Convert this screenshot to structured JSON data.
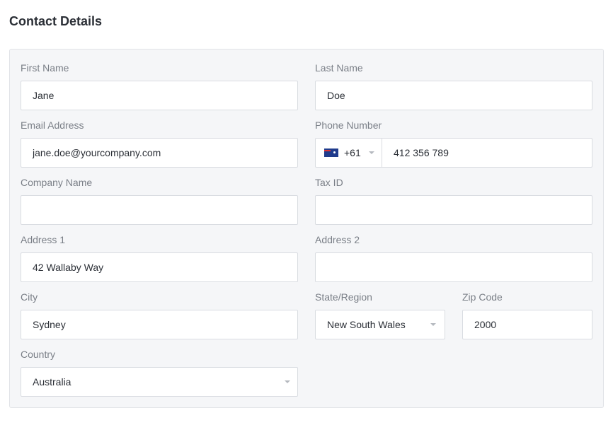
{
  "title": "Contact Details",
  "fields": {
    "first_name": {
      "label": "First Name",
      "value": "Jane"
    },
    "last_name": {
      "label": "Last Name",
      "value": "Doe"
    },
    "email": {
      "label": "Email Address",
      "value": "jane.doe@yourcompany.com"
    },
    "phone": {
      "label": "Phone Number",
      "country_code": "+61",
      "flag": "australia-flag",
      "value": "412 356 789"
    },
    "company": {
      "label": "Company Name",
      "value": ""
    },
    "tax_id": {
      "label": "Tax ID",
      "value": ""
    },
    "address1": {
      "label": "Address 1",
      "value": "42 Wallaby Way"
    },
    "address2": {
      "label": "Address 2",
      "value": ""
    },
    "city": {
      "label": "City",
      "value": "Sydney"
    },
    "state": {
      "label": "State/Region",
      "value": "New South Wales"
    },
    "zip": {
      "label": "Zip Code",
      "value": "2000"
    },
    "country": {
      "label": "Country",
      "value": "Australia"
    }
  }
}
